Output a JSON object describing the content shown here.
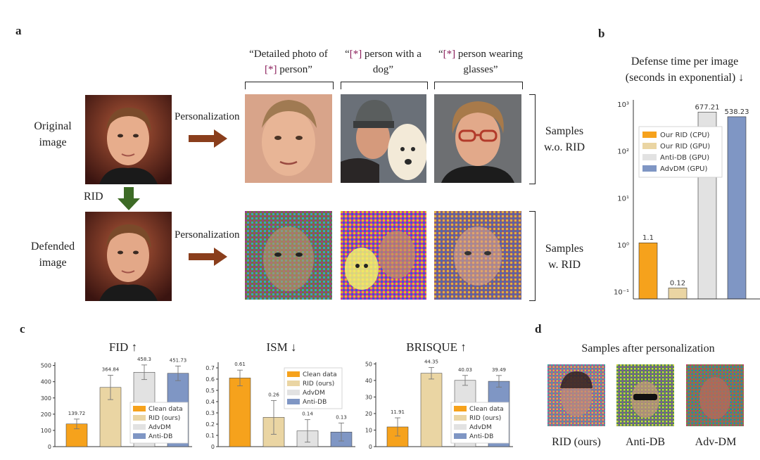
{
  "panels": {
    "a": "a",
    "b": "b",
    "c": "c",
    "d": "d"
  },
  "panel_a": {
    "prompts": [
      {
        "pre": "“Detailed photo of ",
        "mark": "[*]",
        "post": " person”"
      },
      {
        "pre": "“",
        "mark": "[*]",
        "post": " person with a dog”"
      },
      {
        "pre": "“",
        "mark": "[*]",
        "post": " person wearing glasses”"
      }
    ],
    "original_image_label": "Original image",
    "defended_image_label": "Defended image",
    "rid_label": "RID",
    "personalization_label": "Personalization",
    "samples_wo_rid": "Samples w.o. RID",
    "samples_w_rid": "Samples w. RID"
  },
  "panel_b": {
    "title_line1": "Defense time per image",
    "title_line2": "(seconds in exponential) ↓",
    "y_ticks": [
      "10³",
      "10²",
      "10¹",
      "10⁰",
      "10⁻¹"
    ]
  },
  "panel_d": {
    "title": "Samples after personalization",
    "labels": [
      "RID (ours)",
      "Anti-DB",
      "Adv-DM"
    ]
  },
  "colors": {
    "orange": "#f6a21c",
    "tan": "#ead5a3",
    "gray": "#e2e2e2",
    "blue": "#7f96c4",
    "arrow": "#8a3e1c",
    "green": "#3d6b26"
  },
  "chart_data": [
    {
      "type": "bar",
      "title": "Defense time per image (seconds in exponential) ↓",
      "yscale": "log",
      "ylim": [
        0.07,
        1000
      ],
      "categories": [
        "Our RID (CPU)",
        "Our RID (GPU)",
        "Anti-DB (GPU)",
        "AdvDM (GPU)"
      ],
      "values": [
        1.1,
        0.12,
        677.21,
        538.23
      ],
      "labels": [
        "1.1",
        "0.12",
        "677.21",
        "538.23"
      ],
      "legend": [
        "Our RID (CPU)",
        "Our RID (GPU)",
        "Anti-DB (GPU)",
        "AdvDM (GPU)"
      ],
      "legend_position": "top-left"
    },
    {
      "type": "bar",
      "title": "FID ↑",
      "categories": [
        "Clean data",
        "RID (ours)",
        "AdvDM",
        "Anti-DB"
      ],
      "values": [
        139.72,
        364.84,
        458.3,
        451.73
      ],
      "labels": [
        "139.72",
        "364.84",
        "458.3",
        "451.73"
      ],
      "errors": [
        30,
        75,
        45,
        45
      ],
      "ylim": [
        0,
        520
      ],
      "yticks": [
        0,
        100,
        200,
        300,
        400,
        500
      ],
      "legend": [
        "Clean data",
        "RID (ours)",
        "AdvDM",
        "Anti-DB"
      ],
      "legend_position": "bottom-right"
    },
    {
      "type": "bar",
      "title": "ISM ↓",
      "categories": [
        "Clean data",
        "RID (ours)",
        "AdvDM",
        "Anti-DB"
      ],
      "values": [
        0.61,
        0.26,
        0.14,
        0.13
      ],
      "labels": [
        "0.61",
        "0.26",
        "0.14",
        "0.13"
      ],
      "errors": [
        0.07,
        0.15,
        0.1,
        0.08
      ],
      "ylim": [
        0,
        0.75
      ],
      "yticks": [
        0.0,
        0.1,
        0.2,
        0.3,
        0.4,
        0.5,
        0.6,
        0.7
      ],
      "legend": [
        "Clean data",
        "RID (ours)",
        "AdvDM",
        "Anti-DB"
      ],
      "legend_position": "top-right"
    },
    {
      "type": "bar",
      "title": "BRISQUE ↑",
      "categories": [
        "Clean data",
        "RID (ours)",
        "AdvDM",
        "Anti-DB"
      ],
      "values": [
        11.91,
        44.35,
        40.03,
        39.49
      ],
      "labels": [
        "11.91",
        "44.35",
        "40.03",
        "39.49"
      ],
      "errors": [
        5.5,
        3.5,
        3,
        3.5
      ],
      "ylim": [
        0,
        51
      ],
      "yticks": [
        0,
        10,
        20,
        30,
        40,
        50
      ],
      "legend": [
        "Clean data",
        "RID (ours)",
        "AdvDM",
        "Anti-DB"
      ],
      "legend_position": "bottom-right"
    }
  ]
}
